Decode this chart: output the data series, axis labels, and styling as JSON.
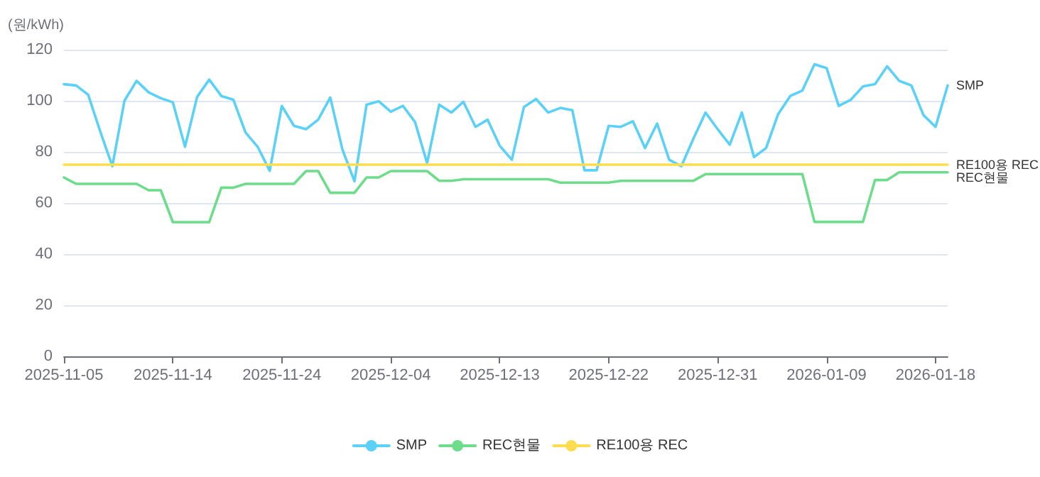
{
  "chart_data": {
    "type": "line",
    "ylabel": "(원/kWh)",
    "categories": [
      "2025-11-05",
      null,
      null,
      null,
      null,
      null,
      null,
      null,
      null,
      "2025-11-14",
      null,
      null,
      null,
      null,
      null,
      null,
      null,
      null,
      "2025-11-24",
      null,
      null,
      null,
      null,
      null,
      null,
      null,
      null,
      "2025-12-04",
      null,
      null,
      null,
      null,
      null,
      null,
      null,
      null,
      "2025-12-13",
      null,
      null,
      null,
      null,
      null,
      null,
      null,
      null,
      "2025-12-22",
      null,
      null,
      null,
      null,
      null,
      null,
      null,
      null,
      "2025-12-31",
      null,
      null,
      null,
      null,
      null,
      null,
      null,
      null,
      "2026-01-09",
      null,
      null,
      null,
      null,
      null,
      null,
      null,
      null,
      "2026-01-18",
      null
    ],
    "series": [
      {
        "name": "SMP",
        "color": "#5bd1f7",
        "values": [
          106.5,
          106,
          102.4,
          88,
          74.4,
          100,
          107.8,
          103.3,
          101,
          99.4,
          82,
          101.5,
          108.3,
          101.9,
          100.4,
          87.6,
          82,
          72.6,
          98,
          90.2,
          88.9,
          92.6,
          101.3,
          81,
          68.5,
          98.5,
          99.8,
          95.7,
          98,
          91.7,
          75.6,
          98.5,
          95.4,
          99.6,
          89.8,
          92.6,
          82.4,
          76.9,
          97.6,
          100.7,
          95.4,
          97.2,
          96.3,
          72.8,
          72.8,
          90.2,
          89.8,
          92,
          81.5,
          91.1,
          76.9,
          74.4,
          85.2,
          95.4,
          88.9,
          82.8,
          95.4,
          78,
          81.5,
          94.8,
          101.9,
          104,
          114.3,
          112.8,
          98,
          100.4,
          105.6,
          106.5,
          113.5,
          107.8,
          106,
          94.4,
          89.8,
          106
        ]
      },
      {
        "name": "REC현물",
        "color": "#6ddc8b",
        "values": [
          70,
          67.5,
          67.5,
          67.5,
          67.5,
          67.5,
          67.5,
          65,
          65,
          52.5,
          52.5,
          52.5,
          52.5,
          66,
          66,
          67.5,
          67.5,
          67.5,
          67.5,
          67.5,
          72.5,
          72.5,
          64,
          64,
          64,
          70,
          70,
          72.5,
          72.5,
          72.5,
          72.5,
          68.7,
          68.7,
          69.3,
          69.3,
          69.3,
          69.3,
          69.3,
          69.3,
          69.3,
          69.3,
          68,
          68,
          68,
          68,
          68,
          68.7,
          68.7,
          68.7,
          68.7,
          68.7,
          68.7,
          68.7,
          71.3,
          71.3,
          71.3,
          71.3,
          71.3,
          71.3,
          71.3,
          71.3,
          71.3,
          52.6,
          52.6,
          52.6,
          52.6,
          52.6,
          69,
          69,
          72,
          72,
          72,
          72,
          72
        ]
      },
      {
        "name": "RE100용 REC",
        "color": "#fddd4f",
        "values": [
          75,
          75,
          75,
          75,
          75,
          75,
          75,
          75,
          75,
          75,
          75,
          75,
          75,
          75,
          75,
          75,
          75,
          75,
          75,
          75,
          75,
          75,
          75,
          75,
          75,
          75,
          75,
          75,
          75,
          75,
          75,
          75,
          75,
          75,
          75,
          75,
          75,
          75,
          75,
          75,
          75,
          75,
          75,
          75,
          75,
          75,
          75,
          75,
          75,
          75,
          75,
          75,
          75,
          75,
          75,
          75,
          75,
          75,
          75,
          75,
          75,
          75,
          75,
          75,
          75,
          75,
          75,
          75,
          75,
          75,
          75,
          75,
          75,
          75
        ]
      }
    ],
    "ylim": [
      0,
      120
    ],
    "yticks": [
      0,
      20,
      40,
      60,
      80,
      100,
      120
    ],
    "grid": "y",
    "legend": "bottom",
    "marker": "none",
    "line_style": "solid"
  }
}
